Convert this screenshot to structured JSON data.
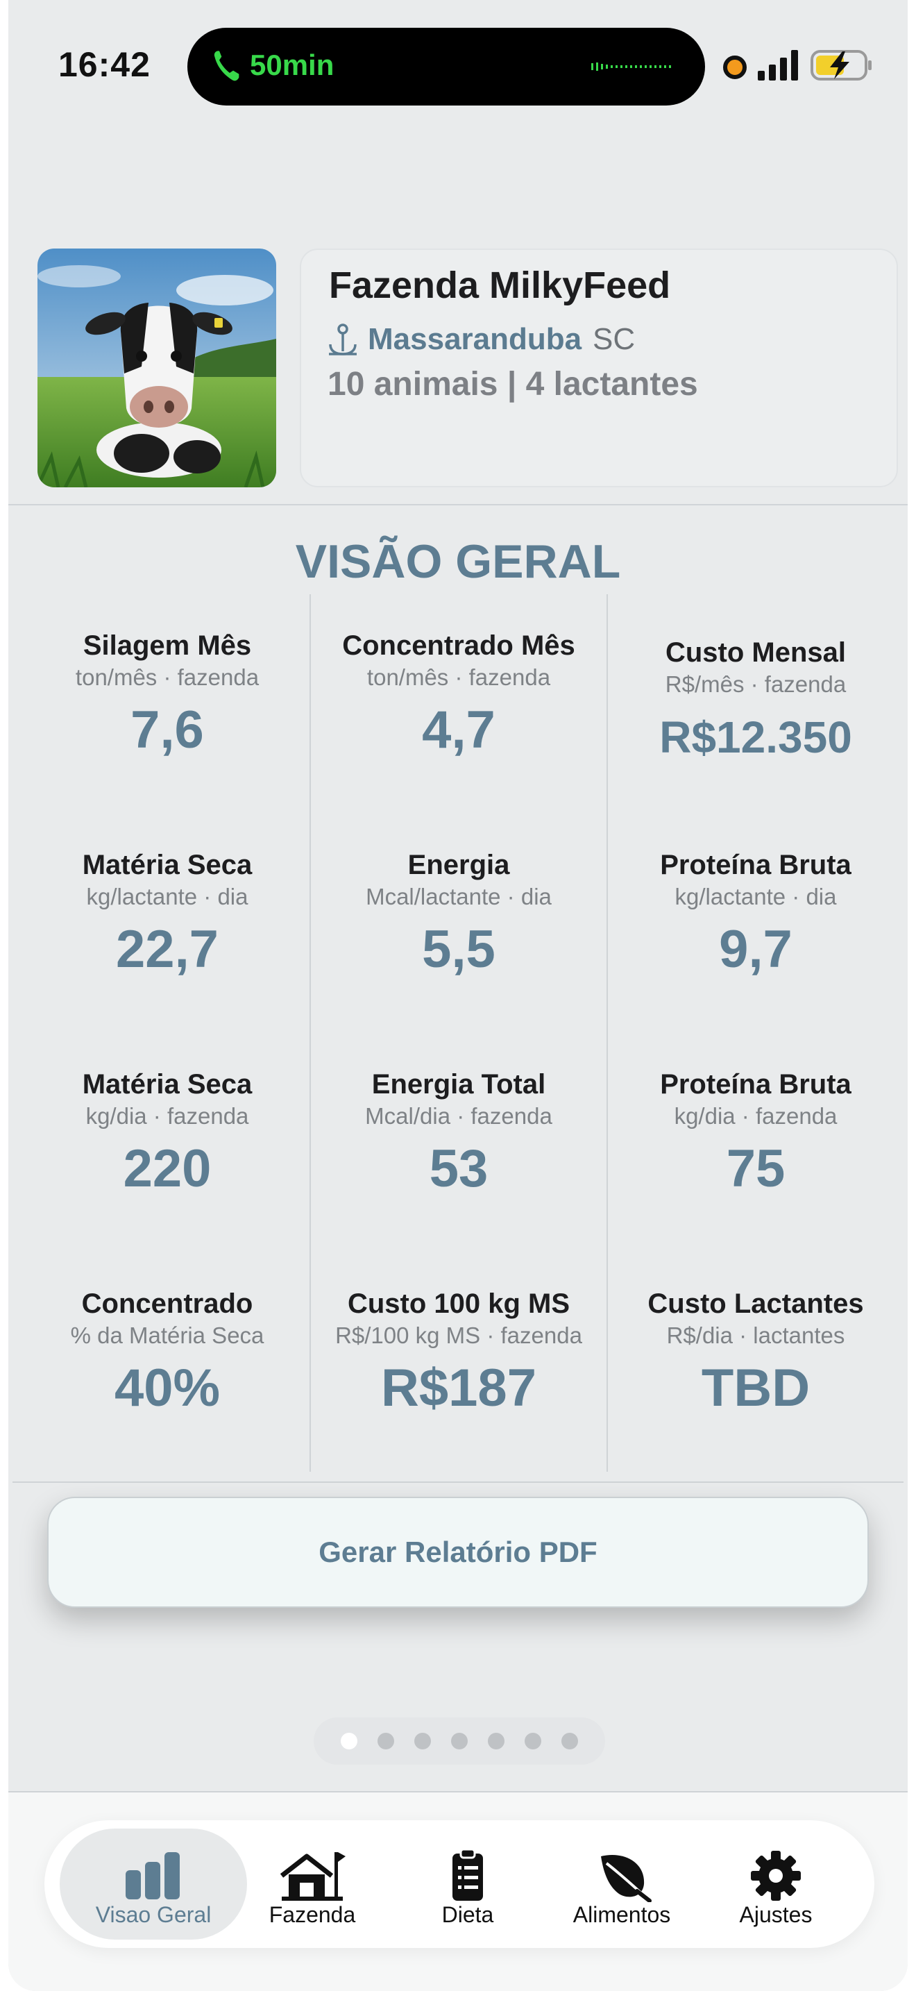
{
  "status_bar": {
    "time": "16:42",
    "call_duration": "50min",
    "call_color": "#38d94a",
    "recording_dot_color": "#f39a1d"
  },
  "farm": {
    "name": "Fazenda MilkyFeed",
    "city": "Massaranduba",
    "state": "SC",
    "animals_summary": "10 animais | 4 lactantes",
    "photo_icon": "cow-photo"
  },
  "overview": {
    "title": "VISÃO GERAL",
    "metrics": [
      {
        "label": "Silagem Mês",
        "unit": "ton/mês · fazenda",
        "value": "7,6"
      },
      {
        "label": "Concentrado Mês",
        "unit": "ton/mês · fazenda",
        "value": "4,7"
      },
      {
        "label": "Custo Mensal",
        "unit": "R$/mês · fazenda",
        "value": "R$12.350"
      },
      {
        "label": "Matéria Seca",
        "unit": "kg/lactante · dia",
        "value": "22,7"
      },
      {
        "label": "Energia",
        "unit": "Mcal/lactante · dia",
        "value": "5,5"
      },
      {
        "label": "Proteína Bruta",
        "unit": "kg/lactante · dia",
        "value": "9,7"
      },
      {
        "label": "Matéria Seca",
        "unit": "kg/dia · fazenda",
        "value": "220"
      },
      {
        "label": "Energia Total",
        "unit": "Mcal/dia · fazenda",
        "value": "53"
      },
      {
        "label": "Proteína Bruta",
        "unit": "kg/dia · fazenda",
        "value": "75"
      },
      {
        "label": "Concentrado",
        "unit": "% da Matéria Seca",
        "value": "40%"
      },
      {
        "label": "Custo 100 kg MS",
        "unit": "R$/100 kg MS · fazenda",
        "value": "R$187"
      },
      {
        "label": "Custo Lactantes",
        "unit": "R$/dia · lactantes",
        "value": "TBD"
      }
    ]
  },
  "actions": {
    "pdf_button": "Gerar Relatório PDF"
  },
  "pager": {
    "total": 7,
    "active_index": 0
  },
  "tabbar": {
    "tabs": [
      {
        "label": "Visao Geral",
        "icon": "chart-bars-icon",
        "active": true
      },
      {
        "label": "Fazenda",
        "icon": "farm-house-icon",
        "active": false
      },
      {
        "label": "Dieta",
        "icon": "clipboard-icon",
        "active": false
      },
      {
        "label": "Alimentos",
        "icon": "leaf-icon",
        "active": false
      },
      {
        "label": "Ajustes",
        "icon": "gear-icon",
        "active": false
      }
    ]
  },
  "colors": {
    "accent": "#5d7d92",
    "background": "#e9ebec"
  }
}
